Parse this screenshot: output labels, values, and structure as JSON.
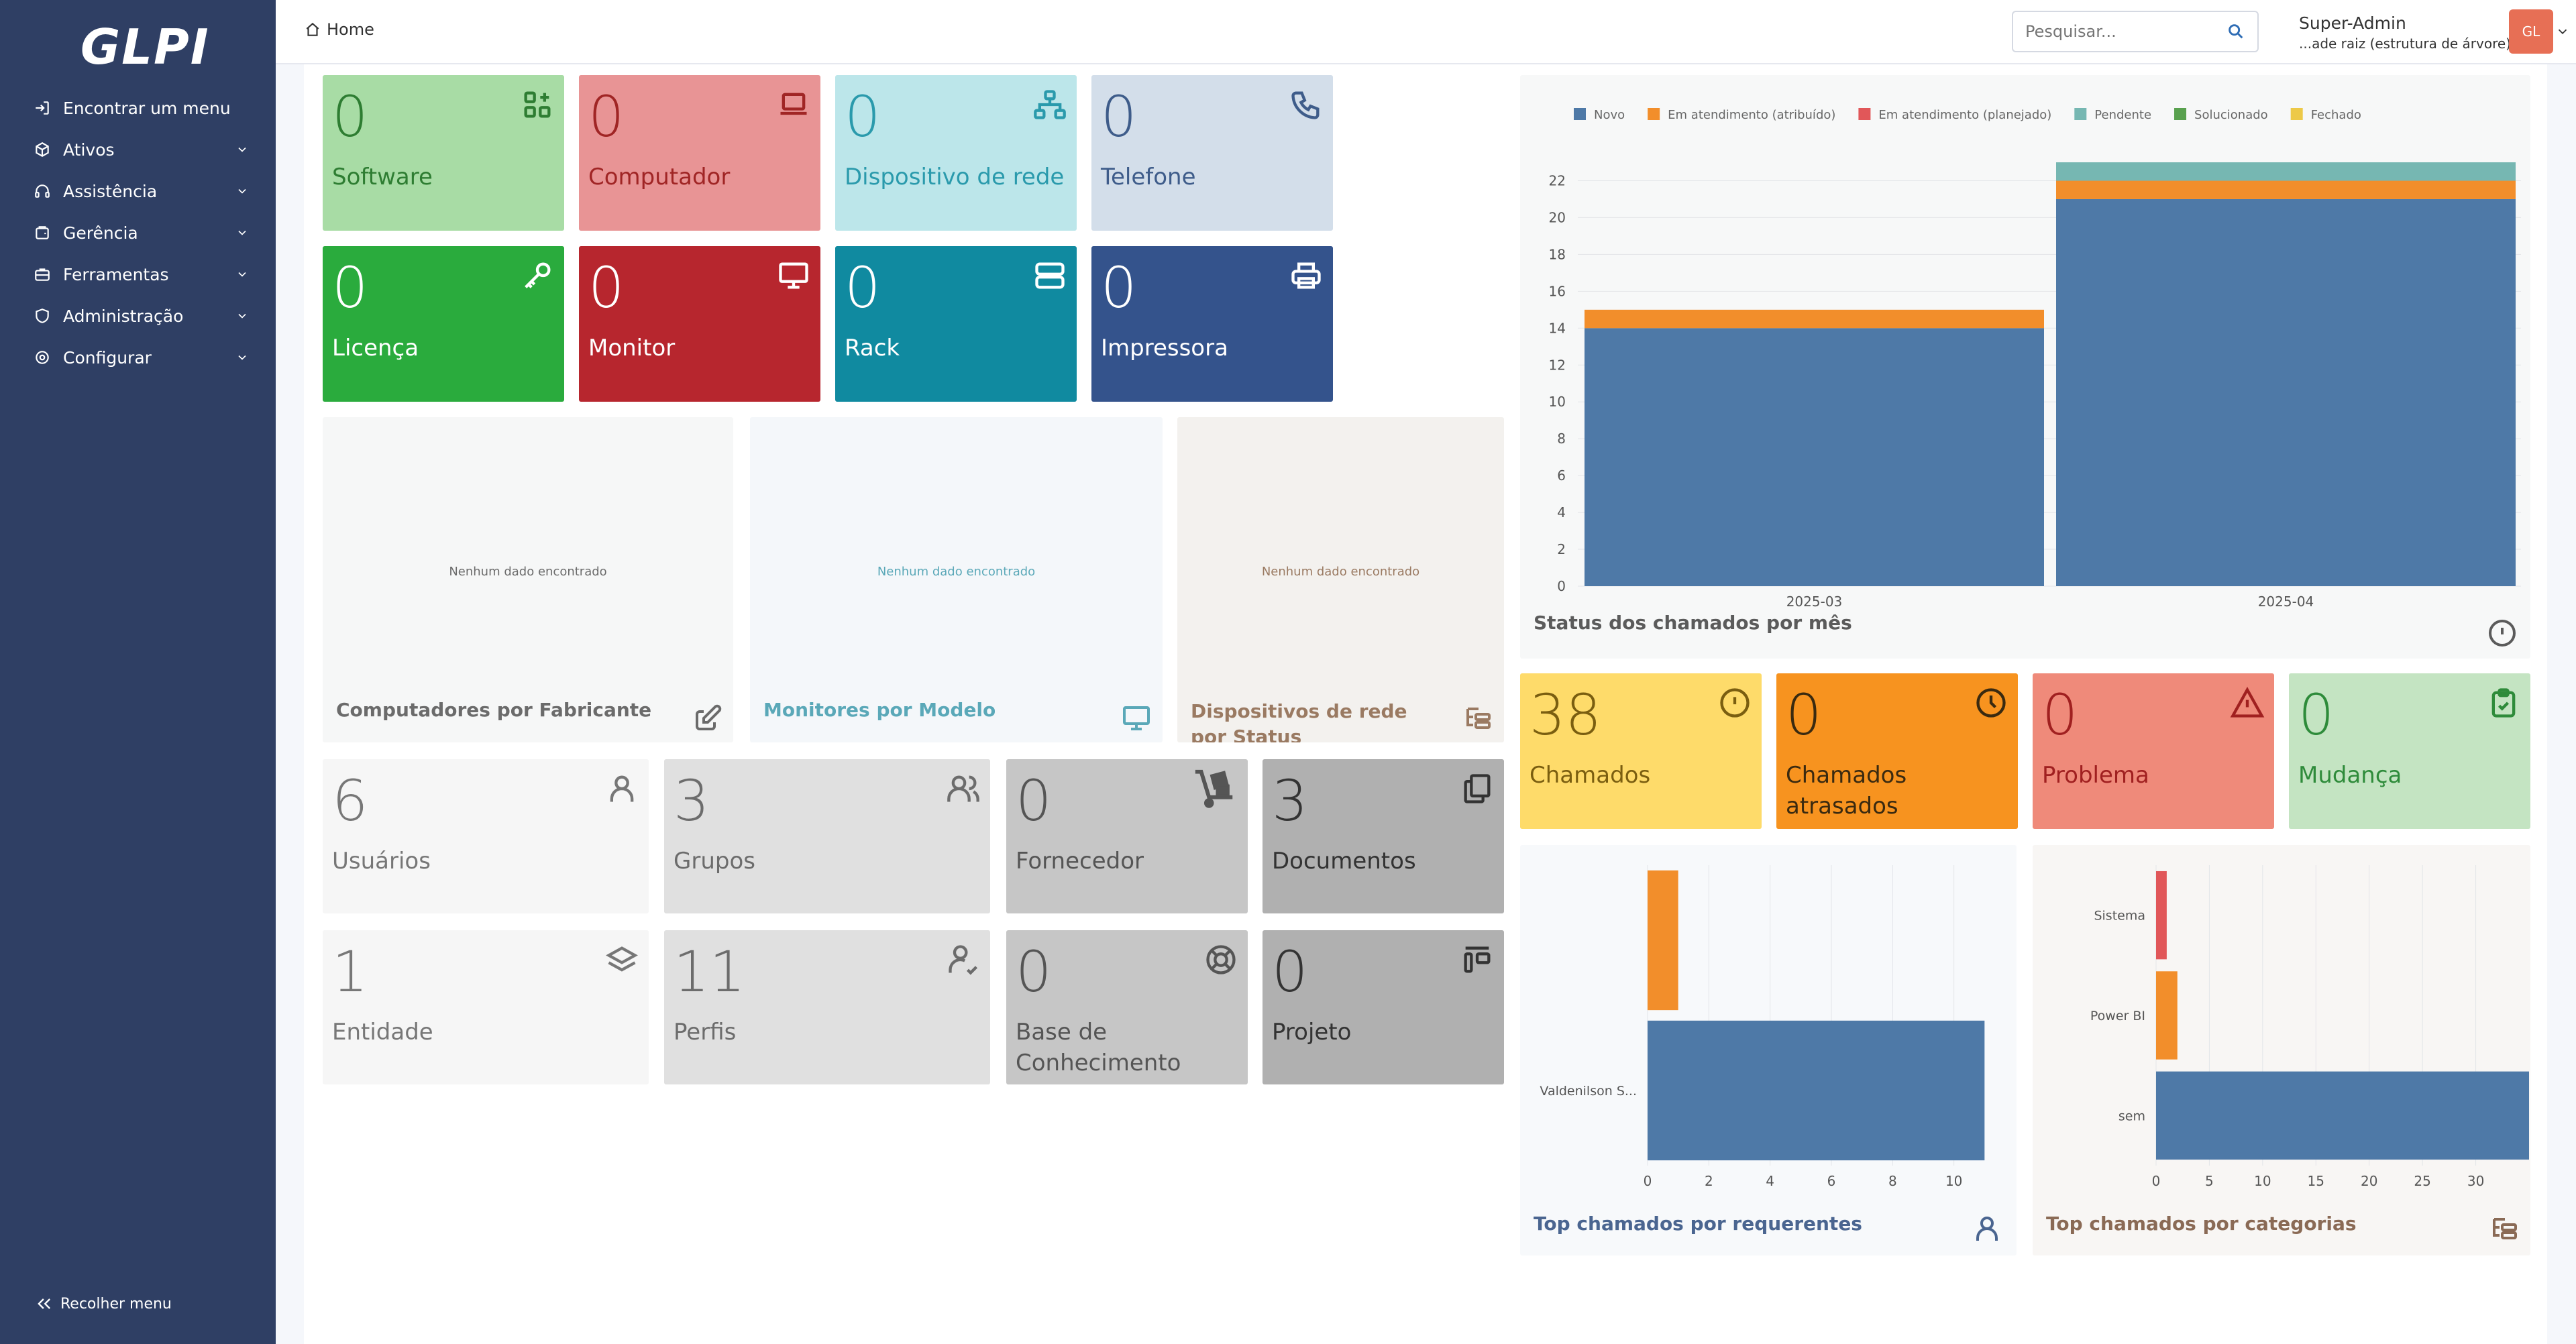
{
  "app": {
    "name": "GLPI"
  },
  "sidebar": {
    "items": [
      {
        "label": "Encontrar um menu",
        "icon": "arrow-in-icon",
        "expandable": false
      },
      {
        "label": "Ativos",
        "icon": "package-icon",
        "expandable": true
      },
      {
        "label": "Assistência",
        "icon": "headset-icon",
        "expandable": true
      },
      {
        "label": "Gerência",
        "icon": "wallet-icon",
        "expandable": true
      },
      {
        "label": "Ferramentas",
        "icon": "briefcase-icon",
        "expandable": true
      },
      {
        "label": "Administração",
        "icon": "shield-icon",
        "expandable": true
      },
      {
        "label": "Configurar",
        "icon": "gear-icon",
        "expandable": true
      }
    ],
    "collapse_label": "Recolher menu"
  },
  "header": {
    "breadcrumb": "Home",
    "search_placeholder": "Pesquisar...",
    "user_name": "Super-Admin",
    "user_entity": "...ade raiz (estrutura de árvore)",
    "avatar_initials": "GL"
  },
  "asset_cards": [
    {
      "value": "0",
      "label": "Software",
      "bg": "#a8dca5",
      "fg": "#2e7d32",
      "icon": "apps-add-icon"
    },
    {
      "value": "0",
      "label": "Computador",
      "bg": "#e89495",
      "fg": "#a02525",
      "icon": "laptop-icon"
    },
    {
      "value": "0",
      "label": "Dispositivo de rede",
      "bg": "#bce6ea",
      "fg": "#2a9aac",
      "icon": "network-icon"
    },
    {
      "value": "0",
      "label": "Telefone",
      "bg": "#d3deea",
      "fg": "#3e5c8a",
      "icon": "phone-icon"
    },
    {
      "value": "0",
      "label": "Licença",
      "bg": "#2aab3d",
      "fg": "#ffffff",
      "icon": "key-icon"
    },
    {
      "value": "0",
      "label": "Monitor",
      "bg": "#b7262e",
      "fg": "#ffffff",
      "icon": "monitor-icon"
    },
    {
      "value": "0",
      "label": "Rack",
      "bg": "#108aa0",
      "fg": "#ffffff",
      "icon": "server-icon"
    },
    {
      "value": "0",
      "label": "Impressora",
      "bg": "#34538c",
      "fg": "#ffffff",
      "icon": "printer-icon"
    }
  ],
  "empty_widgets": [
    {
      "title": "Computadores por Fabricante",
      "message": "Nenhum dado encontrado",
      "bg": "#f6f7f7",
      "fg": "#6b6b6b",
      "icon": "edit-icon"
    },
    {
      "title": "Monitores por Modelo",
      "message": "Nenhum dado encontrado",
      "bg": "#f4f7fa",
      "fg": "#5aa8b8",
      "icon": "monitor-icon"
    },
    {
      "title": "Dispositivos de rede por Status",
      "message": "Nenhum dado encontrado",
      "bg": "#f3f1ee",
      "fg": "#9a7a62",
      "icon": "hierarchy-icon"
    }
  ],
  "admin_cards": [
    {
      "value": "6",
      "label": "Usuários",
      "bg": "#f6f6f6",
      "fg": "#777777",
      "icon": "user-icon"
    },
    {
      "value": "3",
      "label": "Grupos",
      "bg": "#e0e0e0",
      "fg": "#6c6c6c",
      "icon": "users-icon"
    },
    {
      "value": "0",
      "label": "Fornecedor",
      "bg": "#c6c6c6",
      "fg": "#555555",
      "icon": "dolly-icon"
    },
    {
      "value": "3",
      "label": "Documentos",
      "bg": "#b0b0b0",
      "fg": "#333333",
      "icon": "documents-icon"
    },
    {
      "value": "1",
      "label": "Entidade",
      "bg": "#f6f6f6",
      "fg": "#777777",
      "icon": "layers-icon"
    },
    {
      "value": "11",
      "label": "Perfis",
      "bg": "#e0e0e0",
      "fg": "#6c6c6c",
      "icon": "user-check-icon"
    },
    {
      "value": "0",
      "label": "Base de Conhecimento",
      "bg": "#c6c6c6",
      "fg": "#555555",
      "icon": "lifebuoy-icon"
    },
    {
      "value": "0",
      "label": "Projeto",
      "bg": "#b0b0b0",
      "fg": "#333333",
      "icon": "project-icon"
    }
  ],
  "ticket_cards": [
    {
      "value": "38",
      "label": "Chamados",
      "bg": "#fedb6a",
      "fg": "#7a5e10",
      "icon": "alert-circle-icon"
    },
    {
      "value": "0",
      "label": "Chamados atrasados",
      "bg": "#f7931f",
      "fg": "#3a2a10",
      "icon": "clock-icon"
    },
    {
      "value": "0",
      "label": "Problema",
      "bg": "#ef8a7a",
      "fg": "#a02020",
      "icon": "warning-icon"
    },
    {
      "value": "0",
      "label": "Mudança",
      "bg": "#c4e4c2",
      "fg": "#2e8b3a",
      "icon": "clipboard-check-icon"
    }
  ],
  "status_chart": {
    "title": "Status dos chamados por mês",
    "bg": "#f7f8f8",
    "title_color": "#5b5b5b",
    "icon": "alert-circle-icon",
    "legend": [
      {
        "name": "Novo",
        "color": "#4e79a7"
      },
      {
        "name": "Em atendimento (atribuído)",
        "color": "#f28e2b"
      },
      {
        "name": "Em atendimento (planejado)",
        "color": "#e15759"
      },
      {
        "name": "Pendente",
        "color": "#76b7b2"
      },
      {
        "name": "Solucionado",
        "color": "#59a14f"
      },
      {
        "name": "Fechado",
        "color": "#edc948"
      }
    ]
  },
  "requerentes_chart": {
    "title": "Top chamados por requerentes",
    "bg": "#f7f9fb",
    "title_color": "#4a6590",
    "icon": "user-icon"
  },
  "categorias_chart": {
    "title": "Top chamados por categorias",
    "bg": "#f8f6f4",
    "title_color": "#8a6a55",
    "icon": "hierarchy-icon"
  },
  "chart_data": [
    {
      "type": "bar",
      "stacked": true,
      "title": "Status dos chamados por mês",
      "categories": [
        "2025-03",
        "2025-04"
      ],
      "series": [
        {
          "name": "Novo",
          "values": [
            14,
            21
          ]
        },
        {
          "name": "Em atendimento (atribuído)",
          "values": [
            1,
            1
          ]
        },
        {
          "name": "Em atendimento (planejado)",
          "values": [
            0,
            0
          ]
        },
        {
          "name": "Pendente",
          "values": [
            0,
            1
          ]
        },
        {
          "name": "Solucionado",
          "values": [
            0,
            0
          ]
        },
        {
          "name": "Fechado",
          "values": [
            0,
            0
          ]
        }
      ],
      "ylim": [
        0,
        23
      ],
      "yticks": [
        0,
        2,
        4,
        6,
        8,
        10,
        12,
        14,
        16,
        18,
        20,
        22
      ],
      "grid": true,
      "legend": "top"
    },
    {
      "type": "bar",
      "orientation": "horizontal",
      "title": "Top chamados por requerentes",
      "categories": [
        "",
        "Valdenilson S..."
      ],
      "values": [
        1,
        11
      ],
      "colors": [
        "#f28e2b",
        "#4e79a7"
      ],
      "xlim": [
        0,
        12
      ],
      "xticks": [
        0,
        2,
        4,
        6,
        8,
        10
      ],
      "grid": true
    },
    {
      "type": "bar",
      "orientation": "horizontal",
      "title": "Top chamados por categorias",
      "categories": [
        "Sistema",
        "Power BI",
        "sem"
      ],
      "values": [
        1,
        2,
        35
      ],
      "colors": [
        "#e15759",
        "#f28e2b",
        "#4e79a7"
      ],
      "xlim": [
        0,
        35
      ],
      "xticks": [
        0,
        5,
        10,
        15,
        20,
        25,
        30
      ],
      "grid": true
    }
  ]
}
